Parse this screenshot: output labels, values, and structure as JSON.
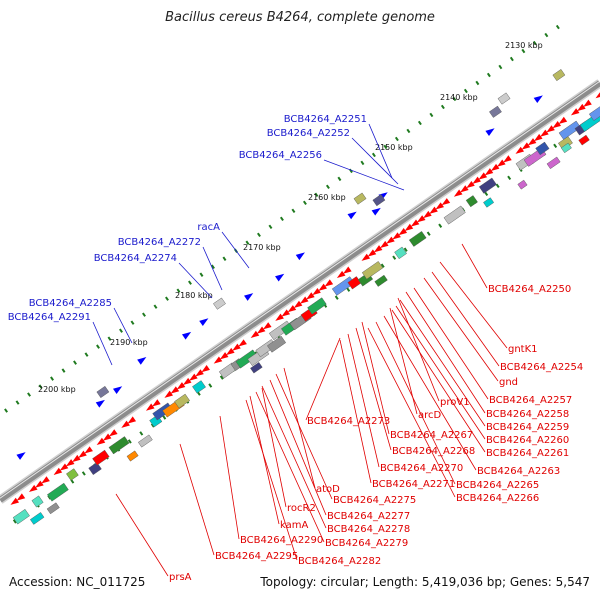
{
  "title": "Bacillus cereus B4264, complete genome",
  "footer": {
    "accession": "Accession: NC_011725",
    "summary": "Topology: circular; Length: 5,419,036 bp; Genes: 5,547"
  },
  "colors": {
    "backbone": "#8c8c8c",
    "tick": "#1f7a1f",
    "forward_label": "#1a1acc",
    "reverse_label": "#e00000",
    "forward_gene": "#0000ff",
    "reverse_gene": "#ff0000"
  },
  "kbp_labels": [
    "2130 kbp",
    "2140 kbp",
    "2150 kbp",
    "2160 kbp",
    "2170 kbp",
    "2180 kbp",
    "2190 kbp",
    "2200 kbp"
  ],
  "forward_labels": [
    "BCB4264_A2251",
    "BCB4264_A2252",
    "BCB4264_A2256",
    "racA",
    "BCB4264_A2272",
    "BCB4264_A2274",
    "BCB4264_A2285",
    "BCB4264_A2291"
  ],
  "reverse_labels": [
    "BCB4264_A2250",
    "gntK1",
    "BCB4264_A2254",
    "gnd",
    "BCB4264_A2257",
    "BCB4264_A2258",
    "proV1",
    "BCB4264_A2259",
    "arcD",
    "BCB4264_A2260",
    "BCB4264_A2273",
    "BCB4264_A2261",
    "BCB4264_A2267",
    "BCB4264_A2268",
    "BCB4264_A2263",
    "BCB4264_A2270",
    "BCB4264_A2265",
    "BCB4264_A2271",
    "BCB4264_A2266",
    "atoD",
    "BCB4264_A2275",
    "rocR2",
    "BCB4264_A2277",
    "kamA",
    "BCB4264_A2278",
    "BCB4264_A2290",
    "BCB4264_A2279",
    "BCB4264_A2295",
    "BCB4264_A2282",
    "prsA"
  ]
}
